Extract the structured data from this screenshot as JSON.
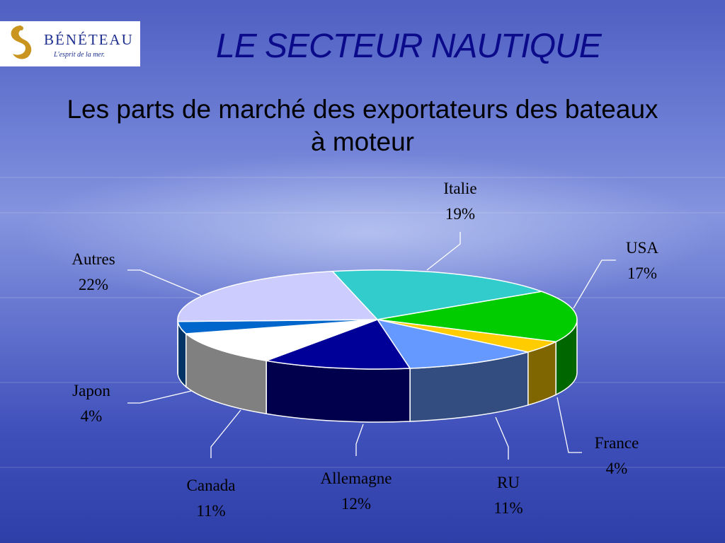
{
  "slide": {
    "title": "LE SECTEUR NAUTIQUE",
    "subtitle_line1": "Les parts de marché des exportateurs des bateaux",
    "subtitle_line2": "à moteur"
  },
  "logo": {
    "name": "BÉNÉTEAU",
    "tagline": "L'esprit de la mer."
  },
  "chart_data": {
    "type": "pie",
    "title": "Les parts de marché des exportateurs des bateaux à moteur",
    "slices": [
      {
        "label": "Italie",
        "value": 19,
        "display": "19%",
        "color": "#33cccc",
        "side": "#1f8f8f"
      },
      {
        "label": "USA",
        "value": 17,
        "display": "17%",
        "color": "#00cc00",
        "side": "#006600"
      },
      {
        "label": "France",
        "value": 4,
        "display": "4%",
        "color": "#ffcc00",
        "side": "#806600"
      },
      {
        "label": "RU",
        "value": 11,
        "display": "11%",
        "color": "#6699ff",
        "side": "#334d80"
      },
      {
        "label": "Allemagne",
        "value": 12,
        "display": "12%",
        "color": "#000099",
        "side": "#00004d"
      },
      {
        "label": "Canada",
        "value": 11,
        "display": "11%",
        "color": "#ffffff",
        "side": "#808080"
      },
      {
        "label": "Japon",
        "value": 4,
        "display": "4%",
        "color": "#0066cc",
        "side": "#003366"
      },
      {
        "label": "Autres",
        "value": 22,
        "display": "22%",
        "color": "#ccccff",
        "side": "#666680"
      }
    ]
  }
}
